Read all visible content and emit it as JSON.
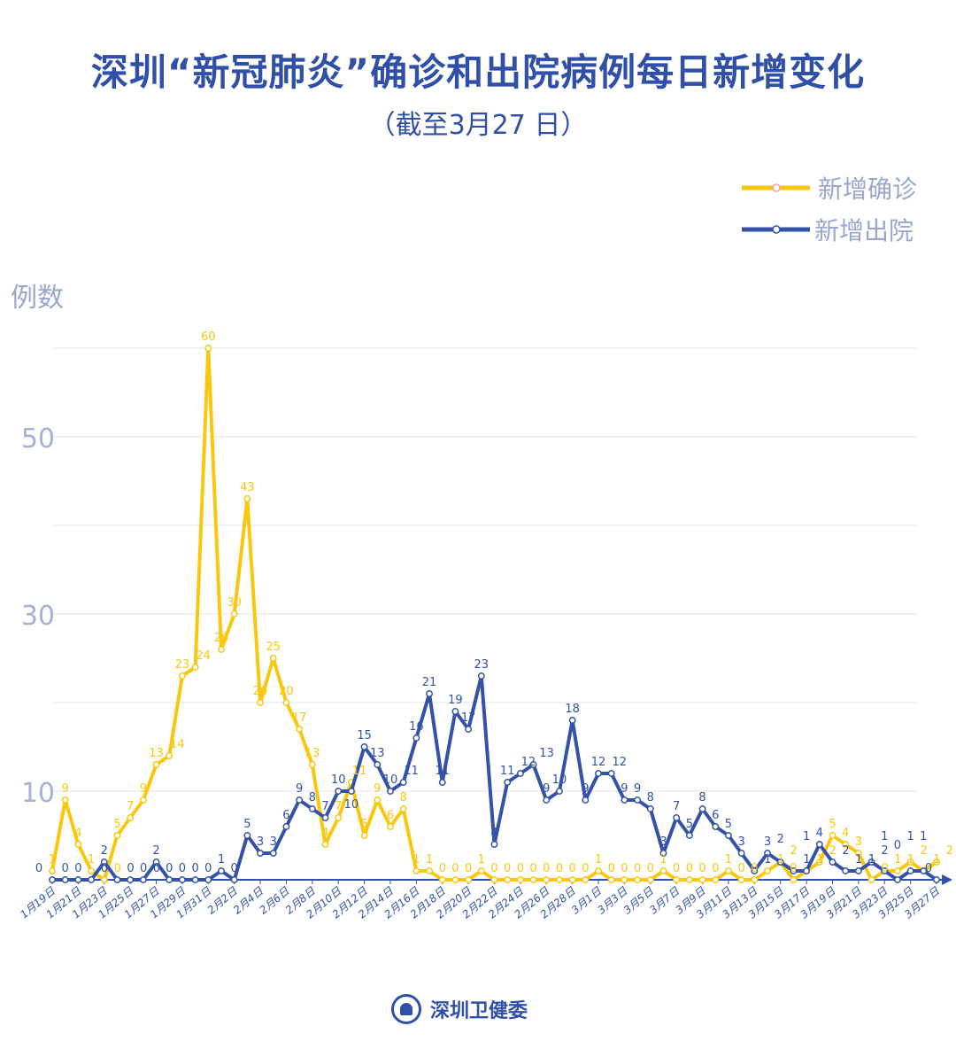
{
  "title": "深圳“新冠肺炎”确诊和出院病例每日新增变化",
  "subtitle": "（截至3月27 日）",
  "footer": {
    "org": "深圳卫健委"
  },
  "chart_data": {
    "type": "line",
    "ylabel": "例数",
    "ylim": [
      0,
      60
    ],
    "yticks": [
      10,
      30,
      50
    ],
    "grid": true,
    "legend_position": "top-right",
    "colors": {
      "confirmed": "#f9c80e",
      "discharged": "#3352a8"
    },
    "dates": [
      "1月19日",
      "1月20日",
      "1月21日",
      "1月22日",
      "1月23日",
      "1月24日",
      "1月25日",
      "1月26日",
      "1月27日",
      "1月28日",
      "1月29日",
      "1月30日",
      "1月31日",
      "2月1日",
      "2月2日",
      "2月3日",
      "2月4日",
      "2月5日",
      "2月6日",
      "2月7日",
      "2月8日",
      "2月9日",
      "2月10日",
      "2月11日",
      "2月12日",
      "2月13日",
      "2月14日",
      "2月15日",
      "2月16日",
      "2月17日",
      "2月18日",
      "2月19日",
      "2月20日",
      "2月21日",
      "2月22日",
      "2月23日",
      "2月24日",
      "2月25日",
      "2月26日",
      "2月27日",
      "2月28日",
      "2月29日",
      "3月1日",
      "3月2日",
      "3月3日",
      "3月4日",
      "3月5日",
      "3月6日",
      "3月7日",
      "3月8日",
      "3月9日",
      "3月10日",
      "3月11日",
      "3月12日",
      "3月13日",
      "3月14日",
      "3月15日",
      "3月16日",
      "3月17日",
      "3月18日",
      "3月19日",
      "3月20日",
      "3月21日",
      "3月22日",
      "3月23日",
      "3月24日",
      "3月25日",
      "3月26日",
      "3月27日"
    ],
    "series": [
      {
        "name": "新增确诊",
        "key": "confirmed",
        "values": [
          1,
          9,
          4,
          1,
          0,
          5,
          7,
          9,
          13,
          14,
          23,
          24,
          60,
          26,
          30,
          43,
          20,
          25,
          20,
          17,
          13,
          4,
          7,
          11,
          5,
          9,
          6,
          8,
          1,
          1,
          0,
          0,
          0,
          1,
          0,
          0,
          0,
          0,
          0,
          0,
          0,
          0,
          1,
          0,
          0,
          0,
          0,
          1,
          0,
          0,
          0,
          0,
          1,
          0,
          0,
          1,
          2,
          0,
          1,
          2,
          5,
          4,
          3,
          0,
          1,
          1,
          2,
          1,
          2
        ]
      },
      {
        "name": "新增出院",
        "key": "discharged",
        "values": [
          0,
          0,
          0,
          0,
          2,
          0,
          0,
          0,
          2,
          0,
          0,
          0,
          0,
          1,
          0,
          5,
          3,
          3,
          6,
          9,
          8,
          7,
          10,
          10,
          15,
          13,
          10,
          11,
          16,
          21,
          11,
          19,
          17,
          23,
          4,
          11,
          12,
          13,
          9,
          10,
          18,
          9,
          12,
          12,
          9,
          9,
          8,
          3,
          7,
          5,
          8,
          6,
          5,
          3,
          1,
          3,
          2,
          1,
          1,
          4,
          2,
          1,
          1,
          2,
          1,
          0,
          1,
          1,
          0
        ]
      }
    ]
  }
}
